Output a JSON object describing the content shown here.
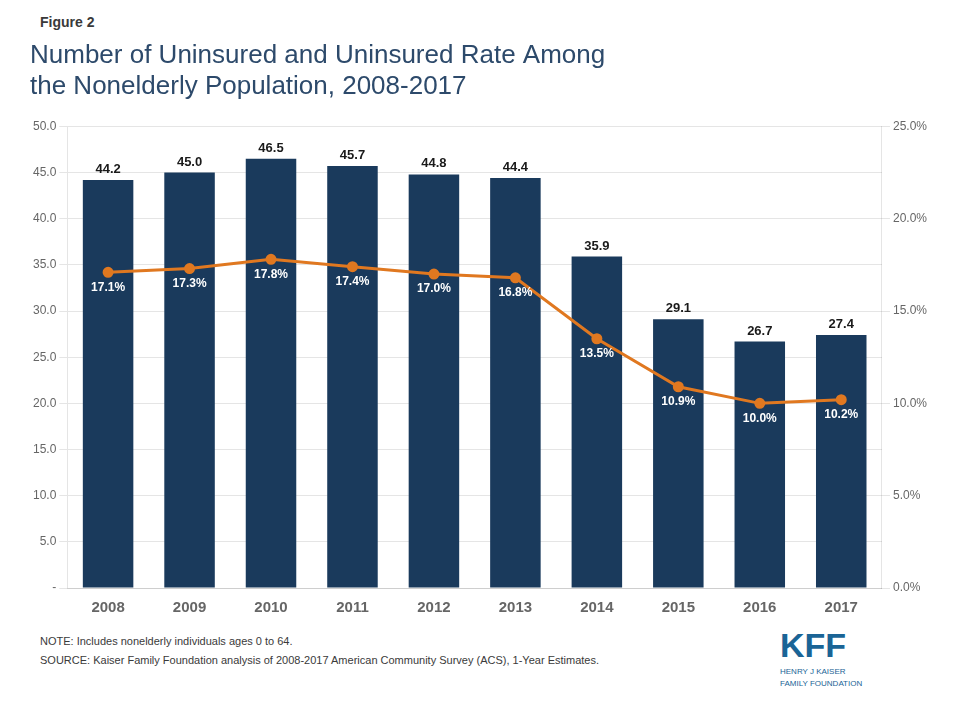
{
  "chart_data": {
    "type": "bar",
    "title": [
      "Number of Uninsured and Uninsured Rate Among",
      "the Nonelderly Population, 2008-2017"
    ],
    "annotations": [
      "Figure 2",
      "NOTE: Includes nonelderly individuals ages 0 to 64.\nSOURCE: Kaiser Family Foundation analysis of 2008-2017 American Community Survey (ACS), 1-Year Estimates.",
      "KFF",
      "HENRY J KAISER\nFAMILY FOUNDATION"
    ],
    "categories": [
      "2008",
      "2009",
      "2010",
      "2011",
      "2012",
      "2013",
      "2014",
      "2015",
      "2016",
      "2017"
    ],
    "series": [
      {
        "type": "bar",
        "color": "#1a3a5c",
        "values": [
          44.2,
          45.0,
          46.5,
          45.7,
          44.8,
          44.4,
          35.9,
          29.1,
          26.7,
          27.4
        ],
        "value_labels": [
          "44.2",
          "45.0",
          "46.5",
          "45.7",
          "44.8",
          "44.4",
          "35.9",
          "29.1",
          "26.7",
          "27.4"
        ]
      },
      {
        "type": "line",
        "color": "#e07820",
        "axis": "y2",
        "marker": "circle",
        "values": [
          17.1,
          17.3,
          17.8,
          17.4,
          17.0,
          16.8,
          13.5,
          10.9,
          10.0,
          10.2
        ],
        "value_labels": [
          "17.1%",
          "17.3%",
          "17.8%",
          "17.4%",
          "17.0%",
          "16.8%",
          "13.5%",
          "10.9%",
          "10.0%",
          "10.2%"
        ]
      }
    ],
    "ylim": [
      0,
      50
    ],
    "yticks": [
      {
        "value": 0,
        "label": "-"
      },
      {
        "value": 5.0,
        "label": "5.0"
      },
      {
        "value": 10.0,
        "label": "10.0"
      },
      {
        "value": 15.0,
        "label": "15.0"
      },
      {
        "value": 20.0,
        "label": "20.0"
      },
      {
        "value": 25.0,
        "label": "25.0"
      },
      {
        "value": 30.0,
        "label": "30.0"
      },
      {
        "value": 35.0,
        "label": "35.0"
      },
      {
        "value": 40.0,
        "label": "40.0"
      },
      {
        "value": 45.0,
        "label": "45.0"
      },
      {
        "value": 50.0,
        "label": "50.0"
      }
    ],
    "y2lim": [
      0,
      25
    ],
    "y2ticks": [
      {
        "value": 0,
        "label": "0.0%"
      },
      {
        "value": 5.0,
        "label": "5.0%"
      },
      {
        "value": 10.0,
        "label": "10.0%"
      },
      {
        "value": 15.0,
        "label": "15.0%"
      },
      {
        "value": 20.0,
        "label": "20.0%"
      },
      {
        "value": 25.0,
        "label": "25.0%"
      }
    ],
    "grid": true,
    "data_labels": true
  }
}
